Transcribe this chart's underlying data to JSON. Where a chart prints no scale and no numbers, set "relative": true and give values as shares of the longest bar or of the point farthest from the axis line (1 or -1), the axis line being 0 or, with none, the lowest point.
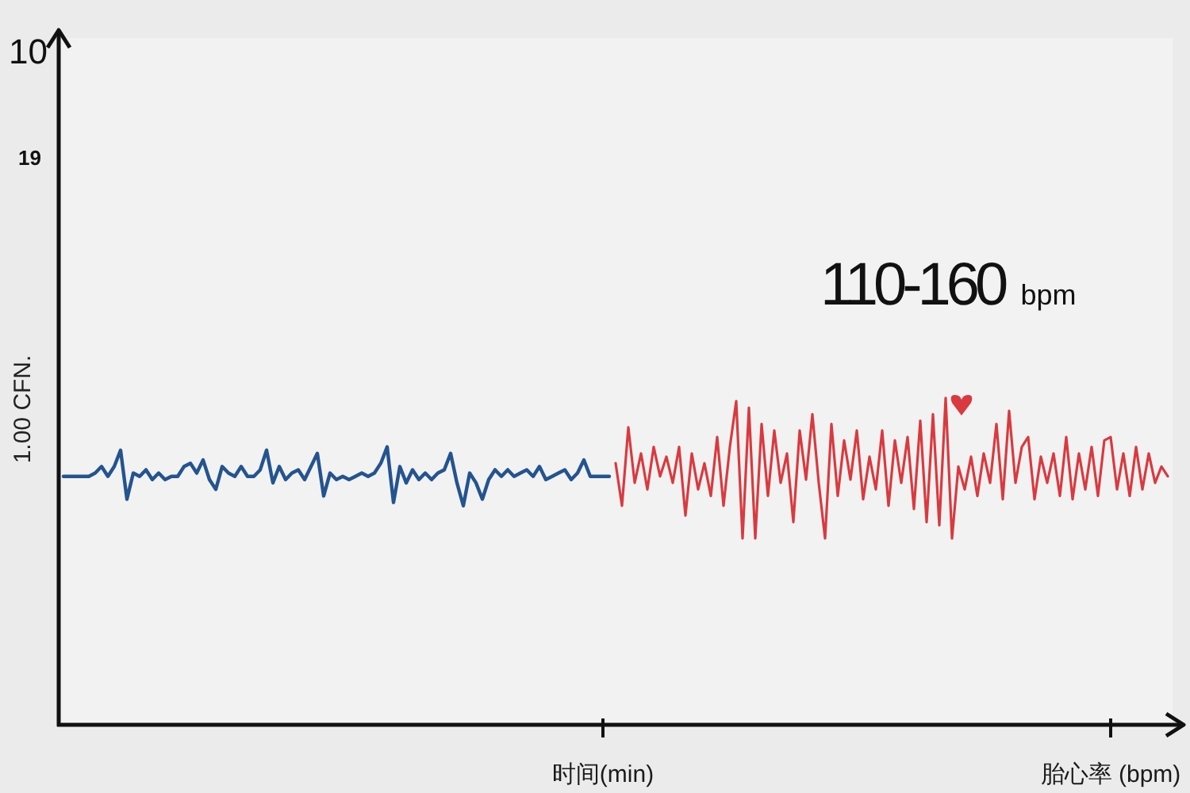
{
  "chart_data": {
    "type": "line",
    "relative": true,
    "ylabel": "1.00 CFN.",
    "annotations": [
      "110-160 bpm",
      "10",
      "19"
    ],
    "categories": [
      null,
      null,
      null,
      null,
      null,
      null,
      null,
      null,
      null,
      null,
      null,
      null,
      null,
      null,
      null,
      null,
      null,
      null,
      null,
      null,
      null,
      null,
      null,
      null,
      null,
      null,
      null,
      null,
      null,
      null,
      null,
      null,
      null,
      null,
      null,
      null,
      null,
      null,
      null,
      null,
      null,
      null,
      null,
      null,
      null,
      null,
      null,
      null,
      null,
      null,
      null,
      null,
      null,
      null,
      null,
      null,
      null,
      null,
      null,
      null,
      null,
      null,
      null,
      null,
      null,
      null,
      null,
      null,
      null,
      null,
      null,
      null,
      null,
      null,
      null,
      null,
      null,
      null,
      null,
      null,
      null,
      null,
      null,
      null,
      null,
      "时间(min)",
      null,
      null,
      null,
      null,
      null,
      null,
      null,
      null,
      null,
      null,
      null,
      null,
      null,
      null,
      null,
      null,
      null,
      null,
      null,
      null,
      null,
      null,
      null,
      null,
      null,
      null,
      null,
      null,
      null,
      null,
      null,
      null,
      null,
      null,
      null,
      null,
      null,
      null,
      null,
      null,
      null,
      null,
      null,
      null,
      null,
      null,
      null,
      null,
      null,
      null,
      null,
      null,
      null,
      null,
      null,
      null,
      null,
      null,
      null,
      null,
      null,
      null,
      null,
      null,
      null,
      null,
      null,
      null,
      null,
      null,
      null,
      null,
      null,
      null,
      null,
      null,
      null,
      null,
      null,
      "胎心率 (bpm)",
      null,
      null,
      null,
      null,
      null,
      null,
      null,
      null,
      null
    ],
    "series": [
      {
        "color": "#24548f",
        "values": [
          0.76,
          0.76,
          0.76,
          0.76,
          0.76,
          0.77,
          0.79,
          0.76,
          0.79,
          0.84,
          0.69,
          0.77,
          0.76,
          0.78,
          0.75,
          0.77,
          0.75,
          0.76,
          0.76,
          0.79,
          0.8,
          0.77,
          0.81,
          0.75,
          0.72,
          0.79,
          0.77,
          0.76,
          0.79,
          0.76,
          0.76,
          0.78,
          0.84,
          0.74,
          0.79,
          0.75,
          0.77,
          0.78,
          0.75,
          0.79,
          0.83,
          0.7,
          0.77,
          0.75,
          0.76,
          0.75,
          0.76,
          0.77,
          0.76,
          0.77,
          0.8,
          0.85,
          0.68,
          0.79,
          0.74,
          0.78,
          0.75,
          0.77,
          0.75,
          0.77,
          0.78,
          0.83,
          0.74,
          0.67,
          0.77,
          0.74,
          0.69,
          0.75,
          0.78,
          0.76,
          0.78,
          0.76,
          0.77,
          0.78,
          0.76,
          0.79,
          0.75,
          0.76,
          0.77,
          0.78,
          0.75,
          0.77,
          0.81,
          0.76,
          0.76,
          0.76,
          0.76,
          null,
          null,
          null,
          null,
          null,
          null,
          null,
          null,
          null,
          null,
          null,
          null,
          null,
          null,
          null,
          null,
          null,
          null,
          null,
          null,
          null,
          null,
          null,
          null,
          null,
          null,
          null,
          null,
          null,
          null,
          null,
          null,
          null,
          null,
          null,
          null,
          null,
          null,
          null,
          null,
          null,
          null,
          null,
          null,
          null,
          null,
          null,
          null,
          null,
          null,
          null,
          null,
          null,
          null,
          null,
          null,
          null,
          null,
          null,
          null,
          null,
          null,
          null,
          null,
          null,
          null,
          null,
          null,
          null,
          null,
          null,
          null,
          null,
          null,
          null,
          null,
          null,
          null,
          null,
          null,
          null,
          null,
          null,
          null,
          null,
          null,
          null,
          null
        ]
      },
      {
        "color": "#d93a3f",
        "values": [
          null,
          null,
          null,
          null,
          null,
          null,
          null,
          null,
          null,
          null,
          null,
          null,
          null,
          null,
          null,
          null,
          null,
          null,
          null,
          null,
          null,
          null,
          null,
          null,
          null,
          null,
          null,
          null,
          null,
          null,
          null,
          null,
          null,
          null,
          null,
          null,
          null,
          null,
          null,
          null,
          null,
          null,
          null,
          null,
          null,
          null,
          null,
          null,
          null,
          null,
          null,
          null,
          null,
          null,
          null,
          null,
          null,
          null,
          null,
          null,
          null,
          null,
          null,
          null,
          null,
          null,
          null,
          null,
          null,
          null,
          null,
          null,
          null,
          null,
          null,
          null,
          null,
          null,
          null,
          null,
          null,
          null,
          null,
          null,
          null,
          null,
          null,
          0.8,
          0.67,
          0.91,
          0.74,
          0.83,
          0.72,
          0.85,
          0.76,
          0.82,
          0.74,
          0.85,
          0.64,
          0.83,
          0.72,
          0.8,
          0.7,
          0.88,
          0.67,
          0.85,
          0.99,
          0.57,
          0.97,
          0.57,
          0.92,
          0.7,
          0.9,
          0.74,
          0.83,
          0.62,
          0.9,
          0.75,
          0.95,
          0.74,
          0.57,
          0.92,
          0.7,
          0.87,
          0.75,
          0.9,
          0.69,
          0.82,
          0.72,
          0.9,
          0.67,
          0.87,
          0.74,
          0.88,
          0.66,
          0.93,
          0.62,
          0.95,
          0.61,
          1.0,
          0.57,
          0.79,
          0.72,
          0.82,
          0.7,
          0.83,
          0.74,
          0.92,
          0.69,
          0.96,
          0.74,
          0.85,
          0.88,
          0.69,
          0.82,
          0.74,
          0.83,
          0.7,
          0.88,
          0.69,
          0.83,
          0.72,
          0.85,
          0.7,
          0.87,
          0.88,
          0.72,
          0.83,
          0.7,
          0.85,
          0.72,
          0.83,
          0.74,
          0.79,
          0.76
        ]
      }
    ]
  }
}
